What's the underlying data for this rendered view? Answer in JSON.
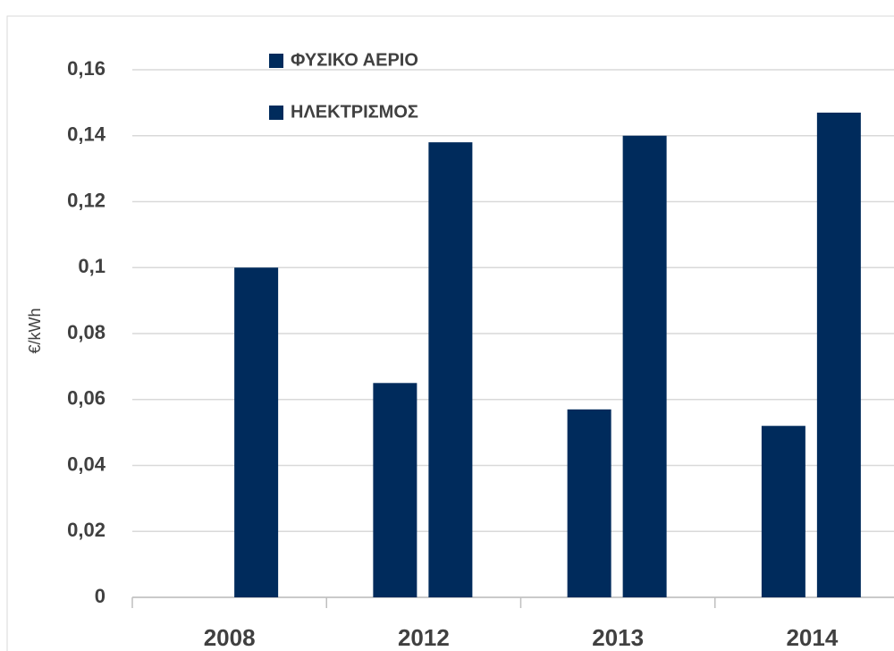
{
  "chart_data": {
    "type": "bar",
    "y_label": "€/kWh",
    "categories": [
      "2008",
      "2012",
      "2013",
      "2014"
    ],
    "series": [
      {
        "name": "ΦΥΣΙΚΟ ΑΕΡΙΟ",
        "color": "#002b5c",
        "values": [
          null,
          0.065,
          0.057,
          0.052
        ]
      },
      {
        "name": "ΗΛΕΚΤΡΙΣΜΟΣ",
        "color": "#002b5c",
        "values": [
          0.1,
          0.138,
          0.14,
          0.147
        ]
      }
    ],
    "ylim": [
      0,
      0.16
    ],
    "yticks": [
      0,
      {
        "value": 0.02,
        "label": "0,02"
      },
      {
        "value": 0.04,
        "label": "0,04"
      },
      {
        "value": 0.06,
        "label": "0,06"
      },
      {
        "value": 0.08,
        "label": "0,08"
      },
      {
        "value": 0.1,
        "label": "0,1"
      },
      {
        "value": 0.12,
        "label": "0,12"
      },
      {
        "value": 0.14,
        "label": "0,14"
      },
      {
        "value": 0.16,
        "label": "0,16"
      }
    ],
    "grid": true
  }
}
